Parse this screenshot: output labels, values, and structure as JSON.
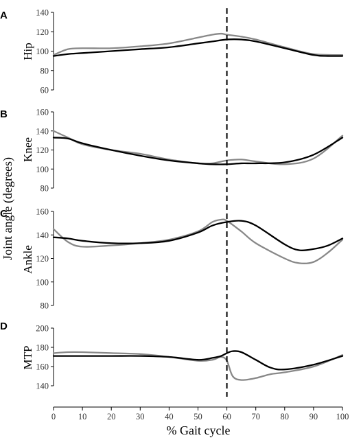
{
  "chart_data": {
    "type": "line",
    "ylabel": "Joint angle (degrees)",
    "xlabel": "% Gait cycle",
    "xlim": [
      0,
      100
    ],
    "xticks": [
      0,
      10,
      20,
      30,
      40,
      50,
      60,
      70,
      80,
      90,
      100
    ],
    "vline_x": 60,
    "colors": {
      "black_series": "#000000",
      "gray_series": "#888888",
      "axis": "#000000",
      "ticks": "#333333"
    },
    "panels": [
      {
        "letter": "A",
        "ylabel": "Hip",
        "ylim": [
          60,
          140
        ],
        "yticks": [
          60,
          80,
          100,
          120,
          140
        ],
        "series": [
          {
            "color": "#000000",
            "x": [
              0,
              5,
              10,
              20,
              30,
              40,
              50,
              55,
              60,
              65,
              70,
              80,
              90,
              95,
              100
            ],
            "y": [
              95,
              97,
              98,
              100,
              102,
              104,
              108,
              110,
              112,
              112,
              110,
              103,
              96,
              95,
              95
            ]
          },
          {
            "color": "#888888",
            "x": [
              0,
              5,
              10,
              20,
              30,
              40,
              50,
              55,
              58,
              60,
              65,
              70,
              80,
              90,
              100
            ],
            "y": [
              96,
              102,
              103,
              103,
              105,
              108,
              114,
              117,
              118,
              117,
              115,
              112,
              104,
              97,
              96
            ]
          }
        ]
      },
      {
        "letter": "B",
        "ylabel": "Knee",
        "ylim": [
          80,
          160
        ],
        "yticks": [
          80,
          100,
          120,
          140,
          160
        ],
        "series": [
          {
            "color": "#000000",
            "x": [
              0,
              5,
              10,
              20,
              30,
              40,
              50,
              55,
              60,
              65,
              70,
              80,
              90,
              100
            ],
            "y": [
              133,
              132,
              127,
              120,
              114,
              109,
              106,
              105,
              105,
              106,
              106,
              107,
              115,
              133
            ]
          },
          {
            "color": "#888888",
            "x": [
              0,
              5,
              10,
              20,
              30,
              40,
              50,
              55,
              60,
              65,
              70,
              80,
              90,
              100
            ],
            "y": [
              140,
              133,
              126,
              120,
              116,
              110,
              106,
              106,
              109,
              110,
              108,
              105,
              111,
              135
            ]
          }
        ]
      },
      {
        "letter": "C",
        "ylabel": "Ankle",
        "ylim": [
          80,
          160
        ],
        "yticks": [
          80,
          100,
          120,
          140,
          160
        ],
        "series": [
          {
            "color": "#000000",
            "x": [
              0,
              5,
              10,
              20,
              30,
              40,
              50,
              55,
              60,
              65,
              70,
              80,
              85,
              90,
              95,
              100
            ],
            "y": [
              138,
              137,
              135,
              133,
              133,
              135,
              142,
              148,
              151,
              152,
              148,
              132,
              127,
              128,
              131,
              137
            ]
          },
          {
            "color": "#888888",
            "x": [
              0,
              5,
              10,
              20,
              30,
              40,
              50,
              55,
              58,
              60,
              65,
              70,
              80,
              85,
              90,
              95,
              100
            ],
            "y": [
              145,
              134,
              130,
              131,
              133,
              136,
              143,
              151,
              153,
              152,
              143,
              133,
              120,
              116,
              117,
              125,
              136
            ]
          }
        ]
      },
      {
        "letter": "D",
        "ylabel": "MTP",
        "ylim": [
          140,
          200
        ],
        "yticks": [
          140,
          160,
          180,
          200
        ],
        "series": [
          {
            "color": "#000000",
            "x": [
              0,
              10,
              20,
              30,
              40,
              50,
              55,
              58,
              60,
              62,
              65,
              70,
              75,
              80,
              90,
              100
            ],
            "y": [
              171,
              171,
              171,
              171,
              170,
              167,
              169,
              171,
              174,
              176,
              175,
              167,
              159,
              157,
              162,
              171
            ]
          },
          {
            "color": "#888888",
            "x": [
              0,
              5,
              10,
              20,
              30,
              40,
              50,
              55,
              58,
              60,
              62,
              65,
              70,
              75,
              80,
              90,
              100
            ],
            "y": [
              174,
              175,
              175,
              174,
              173,
              170,
              166,
              167,
              170,
              166,
              150,
              146,
              148,
              152,
              154,
              160,
              172
            ]
          }
        ]
      }
    ]
  }
}
